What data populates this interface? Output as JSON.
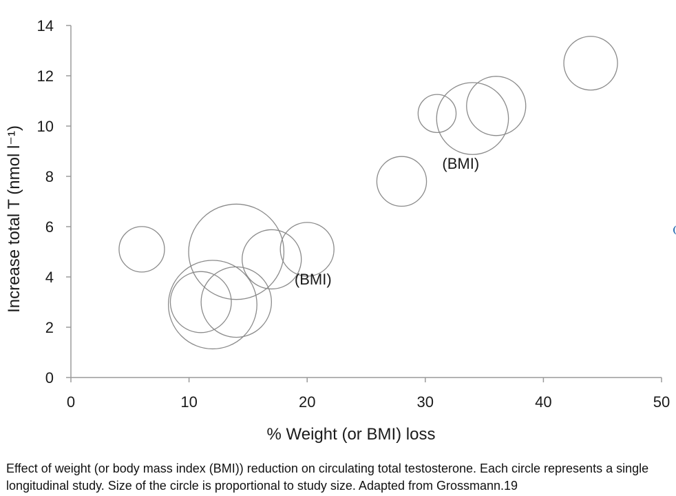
{
  "chart_data": {
    "type": "scatter",
    "xlabel": "% Weight (or BMI) loss",
    "ylabel": "Increase total T (nmol l⁻¹)",
    "xlim": [
      0,
      50
    ],
    "ylim": [
      0,
      14
    ],
    "xticks": [
      0,
      10,
      20,
      30,
      40,
      50
    ],
    "yticks": [
      0,
      2,
      4,
      6,
      8,
      10,
      12,
      14
    ],
    "marker": "open circle, area proportional to study size",
    "grid": false,
    "points": [
      {
        "x": 6,
        "y": 5.1,
        "size": 1.0
      },
      {
        "x": 11,
        "y": 3.0,
        "size": 1.8
      },
      {
        "x": 12,
        "y": 2.9,
        "size": 3.8
      },
      {
        "x": 14,
        "y": 3.0,
        "size": 2.4
      },
      {
        "x": 14,
        "y": 5.0,
        "size": 4.4
      },
      {
        "x": 17,
        "y": 4.7,
        "size": 1.7
      },
      {
        "x": 20,
        "y": 5.1,
        "size": 1.4
      },
      {
        "x": 28,
        "y": 7.8,
        "size": 1.2
      },
      {
        "x": 31,
        "y": 10.5,
        "size": 0.7
      },
      {
        "x": 34,
        "y": 10.3,
        "size": 2.5
      },
      {
        "x": 36,
        "y": 10.8,
        "size": 1.7
      },
      {
        "x": 44,
        "y": 12.5,
        "size": 1.4
      }
    ],
    "annotations": [
      {
        "text": "(BMI)",
        "x": 20.5,
        "y": 3.7
      },
      {
        "text": "(BMI)",
        "x": 33.0,
        "y": 8.3
      }
    ]
  },
  "caption": "Effect of weight (or body mass index (BMI)) reduction on circulating total testosterone. Each circle represents a single longitudinal study. Size of the circle is proportional to study size. Adapted from Grossmann.19",
  "colors": {
    "marker_stroke": "#8a8a8a",
    "axis": "#9a9a9a",
    "text": "#1a1a1a",
    "edge_mark": "#2a6db0"
  }
}
